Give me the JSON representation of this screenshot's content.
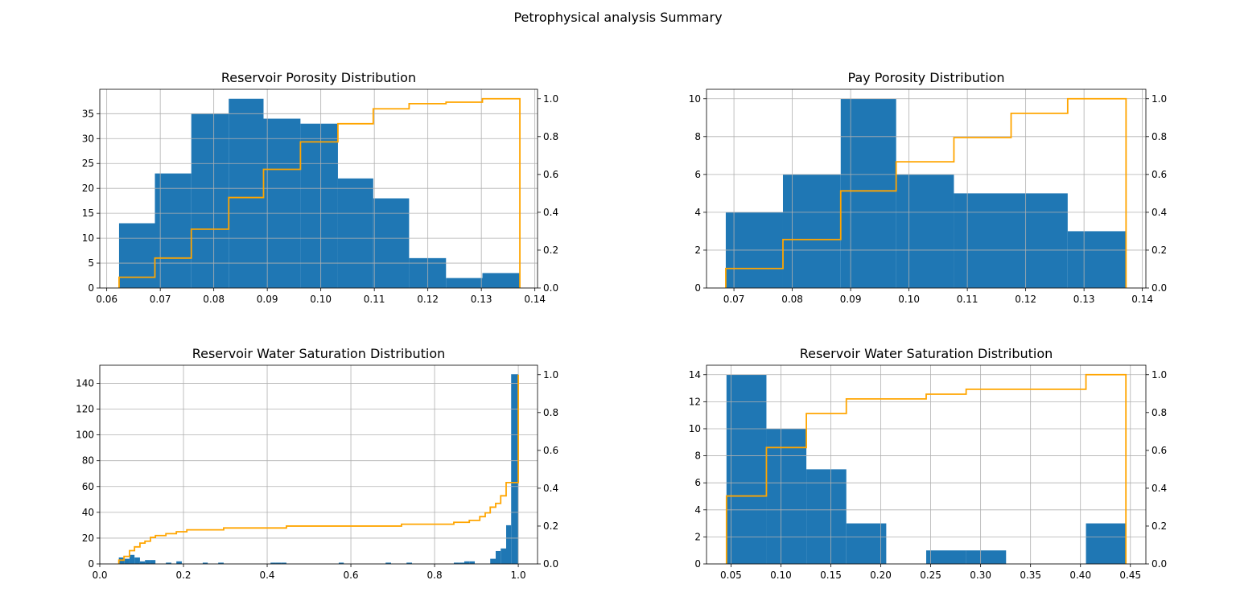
{
  "figure": {
    "suptitle": "Petrophysical analysis Summary"
  },
  "colors": {
    "bar": "#1f77b4",
    "cumulative": "#ffa500",
    "grid": "#b0b0b0",
    "axis": "#000000"
  },
  "chart_data": [
    {
      "type": "bar",
      "title": "Reservoir Porosity Distribution",
      "xlabel": "",
      "ylabel": "",
      "grid": true,
      "xlim": [
        0.0587,
        0.1405
      ],
      "ylim": [
        0,
        39.9
      ],
      "y2lim": [
        0,
        1.05
      ],
      "xticks": [
        0.06,
        0.07,
        0.08,
        0.09,
        0.1,
        0.11,
        0.12,
        0.13,
        0.14
      ],
      "xtick_labels": [
        "0.06",
        "0.07",
        "0.08",
        "0.09",
        "0.10",
        "0.11",
        "0.12",
        "0.13",
        "0.14"
      ],
      "yticks": [
        0,
        5,
        10,
        15,
        20,
        25,
        30,
        35
      ],
      "ytick_labels": [
        "0",
        "5",
        "10",
        "15",
        "20",
        "25",
        "30",
        "35"
      ],
      "y2ticks": [
        0,
        0.2,
        0.4,
        0.6,
        0.8,
        1.0
      ],
      "y2tick_labels": [
        "0.0",
        "0.2",
        "0.4",
        "0.6",
        "0.8",
        "1.0"
      ],
      "bin_edges": [
        0.0623,
        0.069,
        0.0758,
        0.0828,
        0.0893,
        0.0962,
        0.1032,
        0.1098,
        0.1165,
        0.1234,
        0.1302,
        0.1372
      ],
      "values": [
        13,
        23,
        35,
        38,
        34,
        33,
        22,
        18,
        6,
        2,
        3
      ],
      "cumulative": {
        "edges": [
          0.0623,
          0.069,
          0.0758,
          0.0828,
          0.0893,
          0.0962,
          0.1032,
          0.1098,
          0.1165,
          0.1234,
          0.1302,
          0.1372
        ],
        "values": [
          0.057,
          0.158,
          0.311,
          0.478,
          0.627,
          0.772,
          0.868,
          0.947,
          0.974,
          0.982,
          1.0
        ]
      }
    },
    {
      "type": "bar",
      "title": "Pay Porosity Distribution",
      "xlabel": "",
      "ylabel": "",
      "grid": true,
      "xlim": [
        0.0653,
        0.1406
      ],
      "ylim": [
        0,
        10.5
      ],
      "y2lim": [
        0,
        1.05
      ],
      "xticks": [
        0.07,
        0.08,
        0.09,
        0.1,
        0.11,
        0.12,
        0.13,
        0.14
      ],
      "xtick_labels": [
        "0.07",
        "0.08",
        "0.09",
        "0.10",
        "0.11",
        "0.12",
        "0.13",
        "0.14"
      ],
      "yticks": [
        0,
        2,
        4,
        6,
        8,
        10
      ],
      "ytick_labels": [
        "0",
        "2",
        "4",
        "6",
        "8",
        "10"
      ],
      "y2ticks": [
        0,
        0.2,
        0.4,
        0.6,
        0.8,
        1.0
      ],
      "y2tick_labels": [
        "0.0",
        "0.2",
        "0.4",
        "0.6",
        "0.8",
        "1.0"
      ],
      "bin_edges": [
        0.0686,
        0.0784,
        0.0883,
        0.0978,
        0.1077,
        0.1175,
        0.1272,
        0.1372
      ],
      "values": [
        4,
        6,
        10,
        6,
        5,
        5,
        3
      ],
      "cumulative": {
        "edges": [
          0.0686,
          0.0784,
          0.0883,
          0.0978,
          0.1077,
          0.1175,
          0.1272,
          0.1372
        ],
        "values": [
          0.103,
          0.256,
          0.513,
          0.667,
          0.795,
          0.923,
          1.0
        ]
      }
    },
    {
      "type": "bar",
      "title": "Reservoir Water Saturation Distribution",
      "xlabel": "",
      "ylabel": "",
      "grid": true,
      "xlim": [
        0.0,
        1.046
      ],
      "ylim": [
        0,
        154
      ],
      "y2lim": [
        0,
        1.05
      ],
      "xticks": [
        0.0,
        0.2,
        0.4,
        0.6,
        0.8,
        1.0
      ],
      "xtick_labels": [
        "0.0",
        "0.2",
        "0.4",
        "0.6",
        "0.8",
        "1.0"
      ],
      "yticks": [
        0,
        20,
        40,
        60,
        80,
        100,
        120,
        140
      ],
      "ytick_labels": [
        "0",
        "20",
        "40",
        "60",
        "80",
        "100",
        "120",
        "140"
      ],
      "y2ticks": [
        0,
        0.2,
        0.4,
        0.6,
        0.8,
        1.0
      ],
      "y2tick_labels": [
        "0.0",
        "0.2",
        "0.4",
        "0.6",
        "0.8",
        "1.0"
      ],
      "bin_edges": [
        0.0455,
        0.058,
        0.071,
        0.083,
        0.096,
        0.108,
        0.121,
        0.133,
        0.146,
        0.158,
        0.171,
        0.183,
        0.196,
        0.208,
        0.221,
        0.233,
        0.246,
        0.258,
        0.271,
        0.283,
        0.296,
        0.308,
        0.321,
        0.333,
        0.346,
        0.358,
        0.371,
        0.383,
        0.396,
        0.408,
        0.421,
        0.433,
        0.446,
        0.458,
        0.471,
        0.483,
        0.496,
        0.508,
        0.521,
        0.533,
        0.546,
        0.558,
        0.571,
        0.583,
        0.596,
        0.608,
        0.621,
        0.633,
        0.646,
        0.658,
        0.671,
        0.683,
        0.696,
        0.708,
        0.721,
        0.733,
        0.746,
        0.758,
        0.771,
        0.783,
        0.796,
        0.808,
        0.821,
        0.833,
        0.846,
        0.858,
        0.871,
        0.883,
        0.896,
        0.908,
        0.921,
        0.933,
        0.946,
        0.958,
        0.971,
        0.983,
        1.0
      ],
      "values": [
        5,
        4,
        7,
        5,
        2,
        3,
        3,
        0,
        0,
        1,
        0,
        2,
        0,
        0,
        0,
        0,
        1,
        0,
        0,
        1,
        0,
        0,
        0,
        0,
        0,
        0,
        0,
        0,
        0,
        1,
        1,
        1,
        0,
        0,
        0,
        0,
        0,
        0,
        0,
        0,
        0,
        0,
        1,
        0,
        0,
        0,
        0,
        0,
        0,
        0,
        0,
        1,
        0,
        0,
        0,
        1,
        0,
        0,
        0,
        0,
        0,
        0,
        0,
        0,
        1,
        1,
        2,
        2,
        0,
        0,
        0,
        4,
        10,
        12,
        30,
        147
      ],
      "cumulative": {
        "edges": [
          0.0455,
          0.058,
          0.071,
          0.083,
          0.096,
          0.108,
          0.121,
          0.133,
          0.146,
          0.158,
          0.171,
          0.183,
          0.196,
          0.208,
          0.246,
          0.296,
          0.408,
          0.446,
          0.671,
          0.721,
          0.821,
          0.846,
          0.871,
          0.883,
          0.896,
          0.908,
          0.921,
          0.933,
          0.946,
          0.958,
          0.971,
          0.983,
          1.0
        ],
        "values": [
          0.02,
          0.04,
          0.07,
          0.09,
          0.11,
          0.12,
          0.14,
          0.15,
          0.15,
          0.16,
          0.16,
          0.17,
          0.17,
          0.18,
          0.18,
          0.19,
          0.19,
          0.2,
          0.2,
          0.21,
          0.21,
          0.22,
          0.22,
          0.23,
          0.23,
          0.25,
          0.27,
          0.3,
          0.32,
          0.36,
          0.43,
          0.43,
          1.0
        ]
      }
    },
    {
      "type": "bar",
      "title": "Reservoir Water Saturation Distribution",
      "xlabel": "",
      "ylabel": "",
      "grid": true,
      "xlim": [
        0.0255,
        0.4655
      ],
      "ylim": [
        0,
        14.7
      ],
      "y2lim": [
        0,
        1.05
      ],
      "xticks": [
        0.05,
        0.1,
        0.15,
        0.2,
        0.25,
        0.3,
        0.35,
        0.4,
        0.45
      ],
      "xtick_labels": [
        "0.05",
        "0.10",
        "0.15",
        "0.20",
        "0.25",
        "0.30",
        "0.35",
        "0.40",
        "0.45"
      ],
      "yticks": [
        0,
        2,
        4,
        6,
        8,
        10,
        12,
        14
      ],
      "ytick_labels": [
        "0",
        "2",
        "4",
        "6",
        "8",
        "10",
        "12",
        "14"
      ],
      "y2ticks": [
        0,
        0.2,
        0.4,
        0.6,
        0.8,
        1.0
      ],
      "y2tick_labels": [
        "0.0",
        "0.2",
        "0.4",
        "0.6",
        "0.8",
        "1.0"
      ],
      "bin_edges": [
        0.0455,
        0.0855,
        0.1255,
        0.1655,
        0.2055,
        0.2455,
        0.2855,
        0.3255,
        0.3655,
        0.4055,
        0.4455
      ],
      "values": [
        14,
        10,
        7,
        3,
        0,
        1,
        1,
        0,
        0,
        3
      ],
      "cumulative": {
        "edges": [
          0.0455,
          0.0855,
          0.1255,
          0.1655,
          0.2055,
          0.2455,
          0.2855,
          0.3255,
          0.3655,
          0.4055,
          0.4455
        ],
        "values": [
          0.359,
          0.615,
          0.795,
          0.872,
          0.872,
          0.897,
          0.923,
          0.923,
          0.923,
          1.0
        ]
      }
    }
  ]
}
